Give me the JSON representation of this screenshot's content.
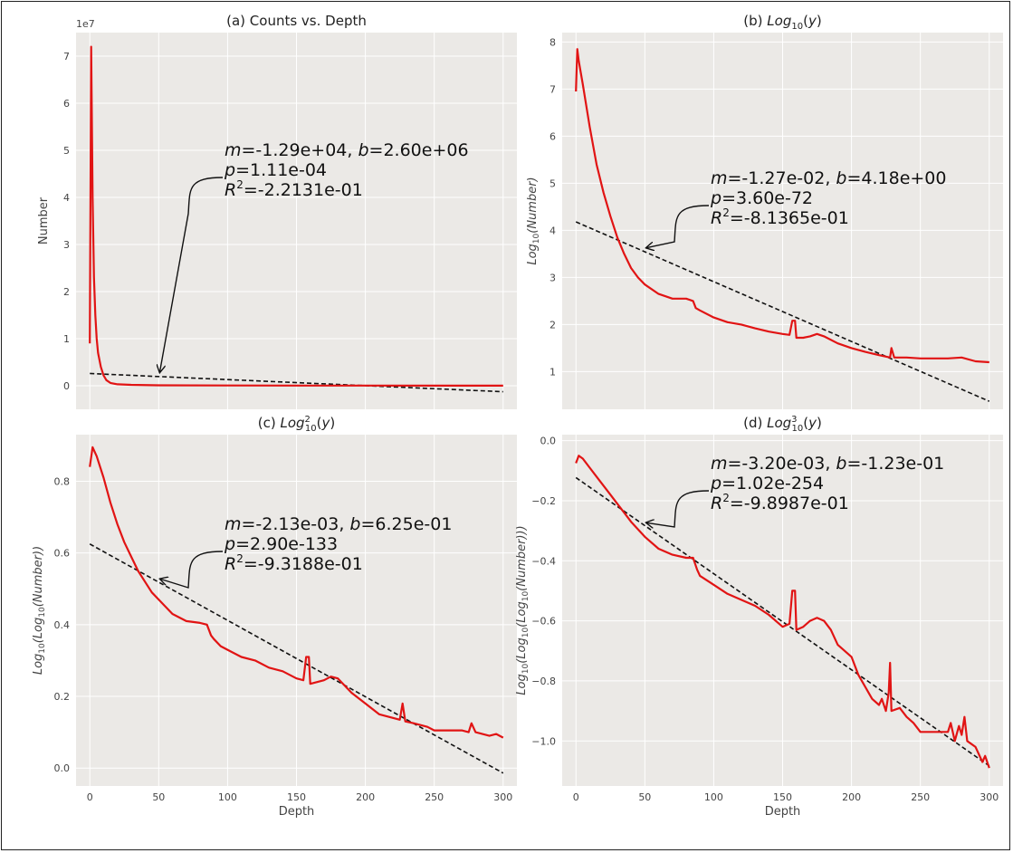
{
  "chart_data": [
    {
      "type": "line",
      "title": "(a) Counts vs. Depth",
      "xlabel": "",
      "ylabel": "Number",
      "y_multiplier": "1e7",
      "xlim": [
        -10,
        310
      ],
      "ylim": [
        -0.5,
        7.5
      ],
      "yticks": [
        0,
        1,
        2,
        3,
        4,
        5,
        6,
        7
      ],
      "xticks": [],
      "grid": true,
      "series_data": [
        [
          0,
          0.9
        ],
        [
          1,
          7.2
        ],
        [
          2,
          4.0
        ],
        [
          3,
          2.3
        ],
        [
          4,
          1.5
        ],
        [
          5,
          1.0
        ],
        [
          6,
          0.7
        ],
        [
          8,
          0.4
        ],
        [
          10,
          0.22
        ],
        [
          12,
          0.12
        ],
        [
          15,
          0.06
        ],
        [
          20,
          0.03
        ],
        [
          30,
          0.02
        ],
        [
          50,
          0.01
        ],
        [
          100,
          0.006
        ],
        [
          150,
          0.004
        ],
        [
          200,
          0.003
        ],
        [
          250,
          0.002
        ],
        [
          300,
          0.0015
        ]
      ],
      "fit": {
        "m_text": "-1.29e+04",
        "b_text": "2.60e+06",
        "p_text": "1.11e-04",
        "r2_text": "-2.2131e-01",
        "line": [
          [
            0,
            0.26
          ],
          [
            300,
            -0.127
          ]
        ]
      },
      "arrow_target": [
        50,
        0.196
      ]
    },
    {
      "type": "line",
      "title": "(b) Log10(y)",
      "xlabel": "",
      "ylabel": "Log10(Number)",
      "xlim": [
        -10,
        310
      ],
      "ylim": [
        0.2,
        8.2
      ],
      "yticks": [
        1,
        2,
        3,
        4,
        5,
        6,
        7,
        8
      ],
      "xticks": [],
      "grid": true,
      "series_data": [
        [
          0,
          6.95
        ],
        [
          1,
          7.85
        ],
        [
          2,
          7.6
        ],
        [
          5,
          7.1
        ],
        [
          10,
          6.2
        ],
        [
          15,
          5.4
        ],
        [
          20,
          4.8
        ],
        [
          25,
          4.3
        ],
        [
          30,
          3.85
        ],
        [
          35,
          3.5
        ],
        [
          40,
          3.2
        ],
        [
          45,
          3.0
        ],
        [
          50,
          2.85
        ],
        [
          60,
          2.65
        ],
        [
          70,
          2.55
        ],
        [
          80,
          2.55
        ],
        [
          85,
          2.5
        ],
        [
          87,
          2.35
        ],
        [
          90,
          2.3
        ],
        [
          100,
          2.15
        ],
        [
          110,
          2.05
        ],
        [
          120,
          2.0
        ],
        [
          130,
          1.92
        ],
        [
          140,
          1.85
        ],
        [
          150,
          1.8
        ],
        [
          155,
          1.78
        ],
        [
          157,
          2.08
        ],
        [
          159,
          2.08
        ],
        [
          160,
          1.72
        ],
        [
          165,
          1.72
        ],
        [
          170,
          1.75
        ],
        [
          175,
          1.8
        ],
        [
          180,
          1.75
        ],
        [
          190,
          1.6
        ],
        [
          200,
          1.5
        ],
        [
          210,
          1.42
        ],
        [
          220,
          1.35
        ],
        [
          228,
          1.3
        ],
        [
          229,
          1.5
        ],
        [
          231,
          1.3
        ],
        [
          240,
          1.3
        ],
        [
          250,
          1.28
        ],
        [
          260,
          1.28
        ],
        [
          270,
          1.28
        ],
        [
          280,
          1.3
        ],
        [
          290,
          1.22
        ],
        [
          300,
          1.2
        ]
      ],
      "fit": {
        "m_text": "-1.27e-02",
        "b_text": "4.18e+00",
        "p_text": "3.60e-72",
        "r2_text": "-8.1365e-01",
        "line": [
          [
            0,
            4.18
          ],
          [
            300,
            0.37
          ]
        ]
      },
      "arrow_target": [
        50,
        3.55
      ]
    },
    {
      "type": "line",
      "title": "(c) Log10^2(y)",
      "xlabel": "Depth",
      "ylabel": "Log10(Log10(Number))",
      "xlim": [
        -10,
        310
      ],
      "ylim": [
        -0.05,
        0.93
      ],
      "yticks": [
        0.0,
        0.2,
        0.4,
        0.6,
        0.8
      ],
      "ytick_labels": [
        "0.0",
        "0.2",
        "0.4",
        "0.6",
        "0.8"
      ],
      "xticks": [
        0,
        50,
        100,
        150,
        200,
        250,
        300
      ],
      "grid": true,
      "series_data": [
        [
          0,
          0.84
        ],
        [
          2,
          0.895
        ],
        [
          5,
          0.87
        ],
        [
          10,
          0.81
        ],
        [
          15,
          0.74
        ],
        [
          20,
          0.68
        ],
        [
          25,
          0.63
        ],
        [
          30,
          0.59
        ],
        [
          35,
          0.55
        ],
        [
          40,
          0.52
        ],
        [
          45,
          0.49
        ],
        [
          50,
          0.47
        ],
        [
          60,
          0.43
        ],
        [
          70,
          0.41
        ],
        [
          80,
          0.405
        ],
        [
          85,
          0.4
        ],
        [
          88,
          0.37
        ],
        [
          90,
          0.36
        ],
        [
          95,
          0.34
        ],
        [
          100,
          0.33
        ],
        [
          110,
          0.31
        ],
        [
          120,
          0.3
        ],
        [
          130,
          0.28
        ],
        [
          140,
          0.27
        ],
        [
          150,
          0.25
        ],
        [
          155,
          0.245
        ],
        [
          157,
          0.31
        ],
        [
          159,
          0.31
        ],
        [
          160,
          0.235
        ],
        [
          165,
          0.24
        ],
        [
          170,
          0.245
        ],
        [
          175,
          0.255
        ],
        [
          180,
          0.25
        ],
        [
          190,
          0.21
        ],
        [
          200,
          0.18
        ],
        [
          210,
          0.15
        ],
        [
          220,
          0.14
        ],
        [
          225,
          0.135
        ],
        [
          227,
          0.18
        ],
        [
          229,
          0.13
        ],
        [
          235,
          0.125
        ],
        [
          240,
          0.12
        ],
        [
          245,
          0.115
        ],
        [
          250,
          0.105
        ],
        [
          260,
          0.105
        ],
        [
          270,
          0.105
        ],
        [
          275,
          0.1
        ],
        [
          277,
          0.125
        ],
        [
          280,
          0.1
        ],
        [
          290,
          0.09
        ],
        [
          295,
          0.095
        ],
        [
          300,
          0.085
        ]
      ],
      "fit": {
        "m_text": "-2.13e-03",
        "b_text": "6.25e-01",
        "p_text": "2.90e-133",
        "r2_text": "-9.3188e-01",
        "line": [
          [
            0,
            0.625
          ],
          [
            300,
            -0.014
          ]
        ]
      },
      "arrow_target": [
        50,
        0.518
      ]
    },
    {
      "type": "line",
      "title": "(d) Log10^3(y)",
      "xlabel": "Depth",
      "ylabel": "Log10(Log10(Log10(Number)))",
      "xlim": [
        -10,
        310
      ],
      "ylim": [
        -1.15,
        0.02
      ],
      "yticks": [
        -1.0,
        -0.8,
        -0.6,
        -0.4,
        -0.2,
        0.0
      ],
      "ytick_labels": [
        "−1.0",
        "−0.8",
        "−0.6",
        "−0.4",
        "−0.2",
        "0.0"
      ],
      "xticks": [
        0,
        50,
        100,
        150,
        200,
        250,
        300
      ],
      "grid": true,
      "series_data": [
        [
          0,
          -0.075
        ],
        [
          2,
          -0.05
        ],
        [
          5,
          -0.06
        ],
        [
          10,
          -0.09
        ],
        [
          15,
          -0.12
        ],
        [
          20,
          -0.15
        ],
        [
          25,
          -0.18
        ],
        [
          30,
          -0.21
        ],
        [
          35,
          -0.24
        ],
        [
          40,
          -0.27
        ],
        [
          50,
          -0.32
        ],
        [
          60,
          -0.36
        ],
        [
          70,
          -0.38
        ],
        [
          80,
          -0.39
        ],
        [
          85,
          -0.39
        ],
        [
          88,
          -0.43
        ],
        [
          90,
          -0.45
        ],
        [
          100,
          -0.48
        ],
        [
          110,
          -0.51
        ],
        [
          120,
          -0.53
        ],
        [
          130,
          -0.55
        ],
        [
          140,
          -0.58
        ],
        [
          150,
          -0.62
        ],
        [
          155,
          -0.61
        ],
        [
          157,
          -0.5
        ],
        [
          159,
          -0.5
        ],
        [
          160,
          -0.63
        ],
        [
          165,
          -0.62
        ],
        [
          170,
          -0.6
        ],
        [
          175,
          -0.59
        ],
        [
          180,
          -0.6
        ],
        [
          185,
          -0.63
        ],
        [
          190,
          -0.68
        ],
        [
          200,
          -0.72
        ],
        [
          205,
          -0.78
        ],
        [
          210,
          -0.82
        ],
        [
          215,
          -0.86
        ],
        [
          220,
          -0.88
        ],
        [
          222,
          -0.86
        ],
        [
          225,
          -0.9
        ],
        [
          227,
          -0.84
        ],
        [
          228,
          -0.74
        ],
        [
          229,
          -0.9
        ],
        [
          235,
          -0.89
        ],
        [
          240,
          -0.92
        ],
        [
          245,
          -0.94
        ],
        [
          250,
          -0.97
        ],
        [
          260,
          -0.97
        ],
        [
          270,
          -0.97
        ],
        [
          272,
          -0.94
        ],
        [
          275,
          -1.0
        ],
        [
          278,
          -0.95
        ],
        [
          280,
          -0.98
        ],
        [
          282,
          -0.92
        ],
        [
          284,
          -1.0
        ],
        [
          290,
          -1.02
        ],
        [
          295,
          -1.07
        ],
        [
          297,
          -1.05
        ],
        [
          300,
          -1.09
        ]
      ],
      "fit": {
        "m_text": "-3.20e-03",
        "b_text": "-1.23e-01",
        "p_text": "1.02e-254",
        "r2_text": "-9.8987e-01",
        "line": [
          [
            0,
            -0.123
          ],
          [
            300,
            -1.083
          ]
        ]
      },
      "arrow_target": [
        50,
        -0.285
      ]
    }
  ],
  "colors": {
    "panel_bg": "#ebe9e6",
    "grid": "#ffffff",
    "series": "#e11414",
    "fit": "#111111"
  }
}
